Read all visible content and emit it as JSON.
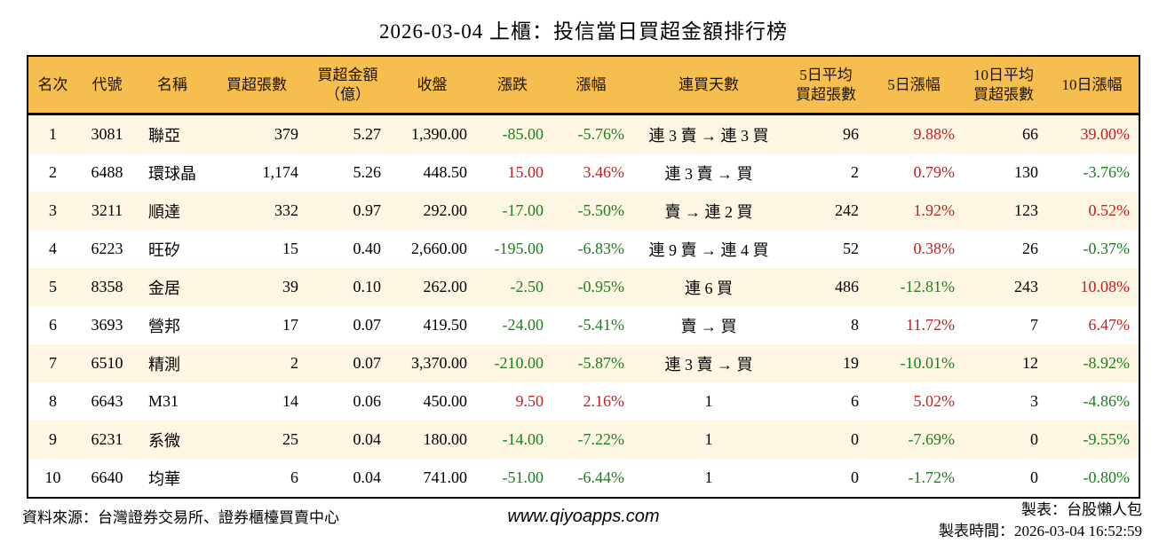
{
  "chart_data": {
    "type": "table",
    "title": "2026-03-04 上櫃：投信當日買超金額排行榜",
    "columns": [
      "名次",
      "代號",
      "名稱",
      "買超張數",
      "買超金額\n（億）",
      "收盤",
      "漲跌",
      "漲幅",
      "連買天數",
      "5日平均\n買超張數",
      "5日漲幅",
      "10日平均\n買超張數",
      "10日漲幅"
    ],
    "rows": [
      [
        "1",
        "3081",
        "聯亞",
        "379",
        "5.27",
        "1,390.00",
        "-85.00",
        "-5.76%",
        "連 3 賣 → 連 3 買",
        "96",
        "9.88%",
        "66",
        "39.00%"
      ],
      [
        "2",
        "6488",
        "環球晶",
        "1,174",
        "5.26",
        "448.50",
        "15.00",
        "3.46%",
        "連 3 賣 → 買",
        "2",
        "0.79%",
        "130",
        "-3.76%"
      ],
      [
        "3",
        "3211",
        "順達",
        "332",
        "0.97",
        "292.00",
        "-17.00",
        "-5.50%",
        "賣 → 連 2 買",
        "242",
        "1.92%",
        "123",
        "0.52%"
      ],
      [
        "4",
        "6223",
        "旺矽",
        "15",
        "0.40",
        "2,660.00",
        "-195.00",
        "-6.83%",
        "連 9 賣 → 連 4 買",
        "52",
        "0.38%",
        "26",
        "-0.37%"
      ],
      [
        "5",
        "8358",
        "金居",
        "39",
        "0.10",
        "262.00",
        "-2.50",
        "-0.95%",
        "連 6 買",
        "486",
        "-12.81%",
        "243",
        "10.08%"
      ],
      [
        "6",
        "3693",
        "營邦",
        "17",
        "0.07",
        "419.50",
        "-24.00",
        "-5.41%",
        "賣 → 買",
        "8",
        "11.72%",
        "7",
        "6.47%"
      ],
      [
        "7",
        "6510",
        "精測",
        "2",
        "0.07",
        "3,370.00",
        "-210.00",
        "-5.87%",
        "連 3 賣 → 買",
        "19",
        "-10.01%",
        "12",
        "-8.92%"
      ],
      [
        "8",
        "6643",
        "M31",
        "14",
        "0.06",
        "450.00",
        "9.50",
        "2.16%",
        "1",
        "6",
        "5.02%",
        "3",
        "-4.86%"
      ],
      [
        "9",
        "6231",
        "系微",
        "25",
        "0.04",
        "180.00",
        "-14.00",
        "-7.22%",
        "1",
        "0",
        "-7.69%",
        "0",
        "-9.55%"
      ],
      [
        "10",
        "6640",
        "均華",
        "6",
        "0.04",
        "741.00",
        "-51.00",
        "-6.44%",
        "1",
        "0",
        "-1.72%",
        "0",
        "-0.80%"
      ]
    ],
    "value_color_rule": "negative values green, positive values red"
  },
  "footer": {
    "source": "資料來源：台灣證券交易所、證券櫃檯買賣中心",
    "website": "www.qiyoapps.com",
    "maker": "製表：台股懶人包",
    "made_at": "製表時間：2026-03-04 16:52:59"
  },
  "colors": {
    "header_bg": "#F5BE4E",
    "row_alt_bg": "#FDF6E3",
    "up_red": "#C41E1E",
    "down_green": "#1E7D1E",
    "border": "#000000"
  }
}
